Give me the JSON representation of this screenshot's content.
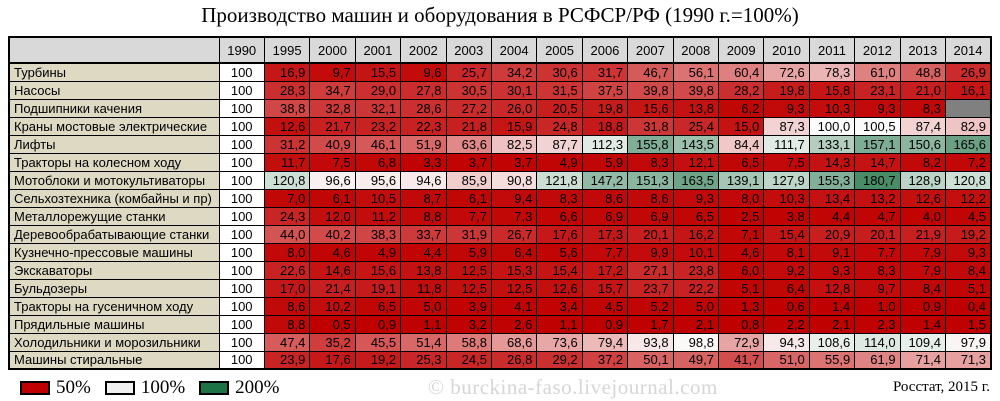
{
  "title": "Производство машин и оборудования в РСФСР/РФ (1990 г.=100%)",
  "chart_data": {
    "type": "heatmap",
    "title": "Производство машин и оборудования в РСФСР/РФ (1990 г.=100%)",
    "columns": [
      "1990",
      "1995",
      "2000",
      "2001",
      "2002",
      "2003",
      "2004",
      "2005",
      "2006",
      "2007",
      "2008",
      "2009",
      "2010",
      "2011",
      "2012",
      "2013",
      "2014"
    ],
    "base_year": "1990",
    "base_value": 100,
    "rows": [
      {
        "name": "Турбины",
        "base": 100,
        "values": [
          16.9,
          9.7,
          15.5,
          9.6,
          25.7,
          34.2,
          30.6,
          31.7,
          46.7,
          56.1,
          60.4,
          72.6,
          78.3,
          61.0,
          48.8,
          26.9
        ]
      },
      {
        "name": "Насосы",
        "base": 100,
        "values": [
          28.3,
          34.7,
          29.0,
          27.8,
          30.5,
          30.1,
          31.5,
          37.5,
          39.8,
          39.8,
          28.2,
          19.8,
          15.8,
          23.1,
          21.0,
          16.1
        ]
      },
      {
        "name": "Подшипники качения",
        "base": 100,
        "values": [
          38.8,
          32.8,
          32.1,
          28.6,
          27.2,
          26.0,
          20.5,
          19.8,
          15.6,
          13.8,
          6.2,
          9.3,
          10.3,
          9.3,
          8.3,
          null
        ]
      },
      {
        "name": "Краны мостовые электрические",
        "base": 100,
        "values": [
          12.6,
          21.7,
          23.2,
          22.3,
          21.8,
          15.9,
          24.8,
          18.8,
          31.8,
          25.4,
          15.0,
          87.3,
          100.0,
          100.5,
          87.4,
          82.9
        ]
      },
      {
        "name": "Лифты",
        "base": 100,
        "values": [
          31.2,
          40.9,
          46.1,
          51.9,
          63.6,
          82.5,
          87.7,
          112.3,
          155.8,
          143.5,
          84.4,
          111.7,
          133.1,
          157.1,
          150.6,
          165.6
        ]
      },
      {
        "name": "Тракторы на колесном ходу",
        "base": 100,
        "values": [
          11.7,
          7.5,
          6.8,
          3.3,
          3.7,
          3.7,
          4.9,
          5.9,
          8.3,
          12.1,
          6.5,
          7.5,
          14.3,
          14.7,
          8.2,
          7.2
        ]
      },
      {
        "name": "Мотоблоки и мотокультиваторы",
        "base": 100,
        "values": [
          120.8,
          96.6,
          95.6,
          94.6,
          85.9,
          90.8,
          121.8,
          147.2,
          151.3,
          163.5,
          139.1,
          127.9,
          155.3,
          180.7,
          128.9,
          120.8
        ]
      },
      {
        "name": "Сельхозтехника (комбайны и пр)",
        "base": 100,
        "values": [
          7.0,
          6.1,
          10.5,
          8.7,
          6.1,
          9.4,
          8.3,
          8.6,
          8.6,
          9.3,
          8.0,
          10.3,
          13.4,
          13.2,
          12.6,
          12.2
        ]
      },
      {
        "name": "Металлорежущие станки",
        "base": 100,
        "values": [
          24.3,
          12.0,
          11.2,
          8.8,
          7.7,
          7.3,
          6.6,
          6.9,
          6.9,
          6.5,
          2.5,
          3.8,
          4.4,
          4.7,
          4.0,
          4.5
        ]
      },
      {
        "name": "Деревообрабатывающие станки",
        "base": 100,
        "values": [
          44.0,
          40.2,
          38.3,
          33.7,
          31.9,
          26.7,
          17.6,
          17.3,
          20.1,
          16.2,
          7.1,
          15.4,
          20.9,
          20.1,
          21.9,
          19.2
        ]
      },
      {
        "name": "Кузнечно-прессовые машины",
        "base": 100,
        "values": [
          8.0,
          4.6,
          4.9,
          4.4,
          5.9,
          6.4,
          5.6,
          7.7,
          9.9,
          10.1,
          4.6,
          8.1,
          9.1,
          7.7,
          7.9,
          9.3
        ]
      },
      {
        "name": "Экскаваторы",
        "base": 100,
        "values": [
          22.6,
          14.6,
          15.6,
          13.8,
          12.5,
          15.3,
          15.4,
          17.2,
          27.1,
          23.8,
          6.0,
          9.2,
          9.3,
          8.3,
          7.9,
          8.4
        ]
      },
      {
        "name": "Бульдозеры",
        "base": 100,
        "values": [
          17.0,
          21.4,
          19.1,
          11.8,
          12.5,
          12.5,
          12.6,
          15.7,
          23.7,
          22.2,
          5.1,
          6.4,
          12.8,
          9.7,
          8.4,
          5.1
        ]
      },
      {
        "name": "Тракторы на гусеничном ходу",
        "base": 100,
        "values": [
          8.6,
          10.2,
          6.5,
          5.0,
          3.9,
          4.1,
          3.4,
          4.5,
          5.2,
          5.0,
          1.3,
          0.6,
          1.4,
          1.0,
          0.9,
          0.4
        ]
      },
      {
        "name": "Прядильные машины",
        "base": 100,
        "values": [
          8.8,
          0.5,
          0.9,
          1.1,
          3.2,
          2.6,
          1.1,
          0.9,
          1.7,
          2.1,
          0.8,
          2.2,
          2.1,
          2.3,
          1.4,
          1.5
        ]
      },
      {
        "name": "Холодильники и морозильники",
        "base": 100,
        "values": [
          47.4,
          35.2,
          45.5,
          51.4,
          58.8,
          68.6,
          73.6,
          79.4,
          93.8,
          98.8,
          72.9,
          94.3,
          108.6,
          114.0,
          109.4,
          97.9
        ]
      },
      {
        "name": "Машины стиральные",
        "base": 100,
        "values": [
          23.9,
          17.6,
          19.2,
          25.3,
          24.5,
          26.8,
          29.2,
          37.2,
          50.1,
          49.7,
          41.7,
          51.0,
          55.9,
          61.9,
          71.4,
          71.3
        ]
      }
    ]
  },
  "legend": {
    "items": [
      {
        "label": "50%",
        "color": "#C00000"
      },
      {
        "label": "100%",
        "color": "#F0F0F0"
      },
      {
        "label": "200%",
        "color": "#1B7346"
      }
    ]
  },
  "watermark": "© burckina-faso.livejournal.com",
  "source": "Росстат, 2015 г.",
  "colors": {
    "scale_red": "#C00000",
    "scale_white": "#FCFCFC",
    "scale_green": "#1E7145",
    "header_bg": "#D9D9D9",
    "label_bg": "#DDD9C3",
    "missing_bg": "#808080",
    "border": "#000000",
    "watermark_gray": "#D6D6D6"
  }
}
